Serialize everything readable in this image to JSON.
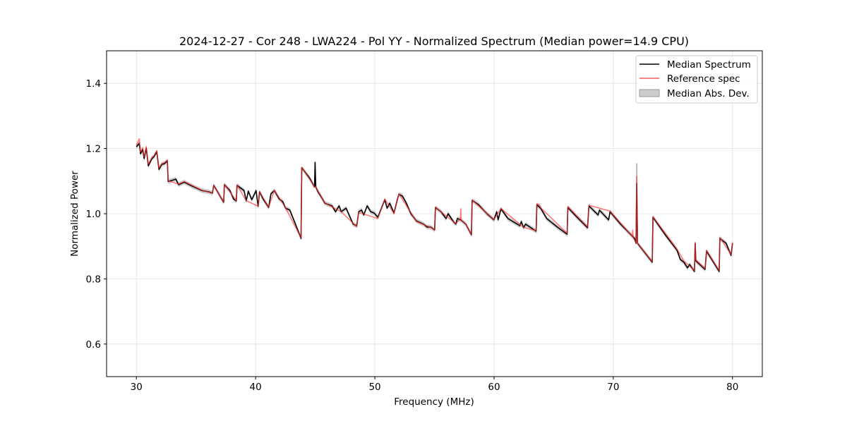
{
  "chart_data": {
    "type": "line",
    "title": "2024-12-27 - Cor 248 - LWA224 - Pol YY - Normalized Spectrum (Median power=14.9 CPU)",
    "xlabel": "Frequency (MHz)",
    "ylabel": "Normalized Power",
    "xlim": [
      27.5,
      82.5
    ],
    "ylim": [
      0.5,
      1.5
    ],
    "xticks": [
      30,
      40,
      50,
      60,
      70,
      80
    ],
    "yticks": [
      0.6,
      0.8,
      1.0,
      1.2,
      1.4
    ],
    "xtick_labels": [
      "30",
      "40",
      "50",
      "60",
      "70",
      "80"
    ],
    "ytick_labels": [
      "0.6",
      "0.8",
      "1.0",
      "1.2",
      "1.4"
    ],
    "grid": true,
    "legend_position": "top-right",
    "legend": [
      "Median Spectrum",
      "Reference spec",
      "Median Abs. Dev."
    ],
    "colors": {
      "median": "#000000",
      "reference": "#ff3333",
      "mad": "#bbbbbb"
    },
    "mad_halfwidth": 0.007,
    "median": [
      [
        30.0,
        1.205
      ],
      [
        30.24,
        1.216
      ],
      [
        30.35,
        1.184
      ],
      [
        30.53,
        1.197
      ],
      [
        30.65,
        1.169
      ],
      [
        30.83,
        1.201
      ],
      [
        31.0,
        1.147
      ],
      [
        31.3,
        1.169
      ],
      [
        31.48,
        1.175
      ],
      [
        31.71,
        1.19
      ],
      [
        31.89,
        1.136
      ],
      [
        32.13,
        1.151
      ],
      [
        32.36,
        1.154
      ],
      [
        32.6,
        1.162
      ],
      [
        32.66,
        1.099
      ],
      [
        33.13,
        1.104
      ],
      [
        33.31,
        1.106
      ],
      [
        33.54,
        1.089
      ],
      [
        34.01,
        1.097
      ],
      [
        34.6,
        1.086
      ],
      [
        35.49,
        1.071
      ],
      [
        36.08,
        1.067
      ],
      [
        36.38,
        1.063
      ],
      [
        36.49,
        1.087
      ],
      [
        36.67,
        1.076
      ],
      [
        37.08,
        1.05
      ],
      [
        37.32,
        1.035
      ],
      [
        37.38,
        1.089
      ],
      [
        37.85,
        1.071
      ],
      [
        38.15,
        1.045
      ],
      [
        38.38,
        1.039
      ],
      [
        38.44,
        1.087
      ],
      [
        39.03,
        1.071
      ],
      [
        39.21,
        1.039
      ],
      [
        39.39,
        1.069
      ],
      [
        39.68,
        1.043
      ],
      [
        40.04,
        1.071
      ],
      [
        40.21,
        1.022
      ],
      [
        40.33,
        1.067
      ],
      [
        40.63,
        1.045
      ],
      [
        41.1,
        1.019
      ],
      [
        41.28,
        1.061
      ],
      [
        41.57,
        1.071
      ],
      [
        41.98,
        1.045
      ],
      [
        42.28,
        1.037
      ],
      [
        42.51,
        1.017
      ],
      [
        42.87,
        1.011
      ],
      [
        43.34,
        0.968
      ],
      [
        43.81,
        0.924
      ],
      [
        43.87,
        1.141
      ],
      [
        44.52,
        1.11
      ],
      [
        44.94,
        1.082
      ],
      [
        44.99,
        1.158
      ],
      [
        45.05,
        1.082
      ],
      [
        45.23,
        1.067
      ],
      [
        45.53,
        1.05
      ],
      [
        45.82,
        1.032
      ],
      [
        46.41,
        1.024
      ],
      [
        46.71,
        1.006
      ],
      [
        47.0,
        1.024
      ],
      [
        47.18,
        1.006
      ],
      [
        47.59,
        1.017
      ],
      [
        48.18,
        0.968
      ],
      [
        48.48,
        0.963
      ],
      [
        48.65,
        1.006
      ],
      [
        48.89,
        1.011
      ],
      [
        49.07,
        0.996
      ],
      [
        49.36,
        1.024
      ],
      [
        49.66,
        1.006
      ],
      [
        49.95,
        1.002
      ],
      [
        50.25,
        0.989
      ],
      [
        50.84,
        1.043
      ],
      [
        51.02,
        1.017
      ],
      [
        51.25,
        1.032
      ],
      [
        51.61,
        1.002
      ],
      [
        51.9,
        1.045
      ],
      [
        52.02,
        1.06
      ],
      [
        52.31,
        1.054
      ],
      [
        52.61,
        1.035
      ],
      [
        53.02,
        1.0
      ],
      [
        53.49,
        0.978
      ],
      [
        54.08,
        0.968
      ],
      [
        54.38,
        0.959
      ],
      [
        54.68,
        0.959
      ],
      [
        55.02,
        0.95
      ],
      [
        55.08,
        1.019
      ],
      [
        55.55,
        1.006
      ],
      [
        55.97,
        0.985
      ],
      [
        56.15,
        1.0
      ],
      [
        56.62,
        0.974
      ],
      [
        56.8,
        0.968
      ],
      [
        56.92,
        0.985
      ],
      [
        57.21,
        0.981
      ],
      [
        57.63,
        0.968
      ],
      [
        58.1,
        0.935
      ],
      [
        58.16,
        1.041
      ],
      [
        58.69,
        1.028
      ],
      [
        59.4,
        1.0
      ],
      [
        59.99,
        0.981
      ],
      [
        60.22,
        1.006
      ],
      [
        60.34,
        0.981
      ],
      [
        60.58,
        1.015
      ],
      [
        61.17,
        0.985
      ],
      [
        61.76,
        0.972
      ],
      [
        62.17,
        0.963
      ],
      [
        62.29,
        0.976
      ],
      [
        62.47,
        0.957
      ],
      [
        62.65,
        0.968
      ],
      [
        63.53,
        0.946
      ],
      [
        63.59,
        1.028
      ],
      [
        63.94,
        1.015
      ],
      [
        64.42,
        0.985
      ],
      [
        65.3,
        0.959
      ],
      [
        66.13,
        0.937
      ],
      [
        66.19,
        1.019
      ],
      [
        67.07,
        0.985
      ],
      [
        67.84,
        0.957
      ],
      [
        67.96,
        1.024
      ],
      [
        68.73,
        0.996
      ],
      [
        68.84,
        1.011
      ],
      [
        69.61,
        0.981
      ],
      [
        69.73,
        1.006
      ],
      [
        70.61,
        0.968
      ],
      [
        71.79,
        0.924
      ],
      [
        71.91,
        0.909
      ],
      [
        71.97,
        1.093
      ],
      [
        72.03,
        0.909
      ],
      [
        73.27,
        0.851
      ],
      [
        73.33,
        0.989
      ],
      [
        74.45,
        0.931
      ],
      [
        75.34,
        0.888
      ],
      [
        75.63,
        0.859
      ],
      [
        75.93,
        0.851
      ],
      [
        76.22,
        0.834
      ],
      [
        76.4,
        0.844
      ],
      [
        76.81,
        0.823
      ],
      [
        76.87,
        0.909
      ],
      [
        76.93,
        0.855
      ],
      [
        77.7,
        0.829
      ],
      [
        77.82,
        0.885
      ],
      [
        78.88,
        0.823
      ],
      [
        78.94,
        0.924
      ],
      [
        79.47,
        0.909
      ],
      [
        79.88,
        0.872
      ],
      [
        80.0,
        0.909
      ]
    ],
    "reference": [
      [
        30.0,
        1.21
      ],
      [
        30.24,
        1.23
      ],
      [
        30.35,
        1.19
      ],
      [
        30.53,
        1.203
      ],
      [
        30.65,
        1.175
      ],
      [
        30.83,
        1.206
      ],
      [
        31.0,
        1.152
      ],
      [
        31.3,
        1.173
      ],
      [
        31.48,
        1.178
      ],
      [
        31.71,
        1.194
      ],
      [
        31.89,
        1.14
      ],
      [
        32.13,
        1.154
      ],
      [
        32.36,
        1.157
      ],
      [
        32.6,
        1.165
      ],
      [
        32.66,
        1.101
      ],
      [
        33.54,
        1.091
      ],
      [
        34.01,
        1.099
      ],
      [
        35.49,
        1.072
      ],
      [
        36.38,
        1.063
      ],
      [
        36.49,
        1.087
      ],
      [
        37.32,
        1.036
      ],
      [
        37.38,
        1.09
      ],
      [
        38.38,
        1.04
      ],
      [
        38.44,
        1.088
      ],
      [
        39.21,
        1.04
      ],
      [
        40.21,
        1.023
      ],
      [
        40.33,
        1.068
      ],
      [
        41.1,
        1.02
      ],
      [
        41.57,
        1.072
      ],
      [
        42.51,
        1.018
      ],
      [
        43.81,
        0.926
      ],
      [
        43.87,
        1.142
      ],
      [
        44.94,
        1.083
      ],
      [
        45.05,
        1.082
      ],
      [
        45.82,
        1.033
      ],
      [
        47.18,
        1.006
      ],
      [
        48.48,
        0.96
      ],
      [
        48.65,
        1.004
      ],
      [
        50.25,
        0.985
      ],
      [
        50.84,
        1.045
      ],
      [
        51.61,
        1.0
      ],
      [
        52.02,
        1.061
      ],
      [
        53.49,
        0.976
      ],
      [
        54.68,
        0.958
      ],
      [
        55.02,
        0.95
      ],
      [
        55.08,
        1.02
      ],
      [
        56.8,
        0.969
      ],
      [
        57.18,
        0.985
      ],
      [
        57.21,
        1.015
      ],
      [
        57.24,
        0.981
      ],
      [
        57.63,
        0.968
      ],
      [
        58.1,
        0.935
      ],
      [
        58.16,
        1.042
      ],
      [
        59.99,
        0.982
      ],
      [
        60.58,
        1.016
      ],
      [
        62.47,
        0.958
      ],
      [
        63.53,
        0.948
      ],
      [
        63.59,
        1.03
      ],
      [
        63.8,
        1.028
      ],
      [
        63.94,
        1.017
      ],
      [
        66.13,
        0.94
      ],
      [
        66.19,
        1.022
      ],
      [
        67.84,
        0.96
      ],
      [
        67.96,
        1.026
      ],
      [
        69.73,
        1.008
      ],
      [
        71.6,
        0.93
      ],
      [
        71.63,
        0.95
      ],
      [
        71.66,
        0.928
      ],
      [
        71.91,
        0.91
      ],
      [
        71.97,
        1.115
      ],
      [
        72.03,
        0.91
      ],
      [
        73.27,
        0.853
      ],
      [
        73.33,
        0.991
      ],
      [
        75.34,
        0.892
      ],
      [
        75.93,
        0.855
      ],
      [
        76.81,
        0.826
      ],
      [
        76.87,
        0.912
      ],
      [
        76.93,
        0.858
      ],
      [
        77.7,
        0.832
      ],
      [
        77.82,
        0.888
      ],
      [
        78.88,
        0.826
      ],
      [
        78.94,
        0.927
      ],
      [
        79.88,
        0.875
      ],
      [
        80.0,
        0.912
      ]
    ]
  }
}
